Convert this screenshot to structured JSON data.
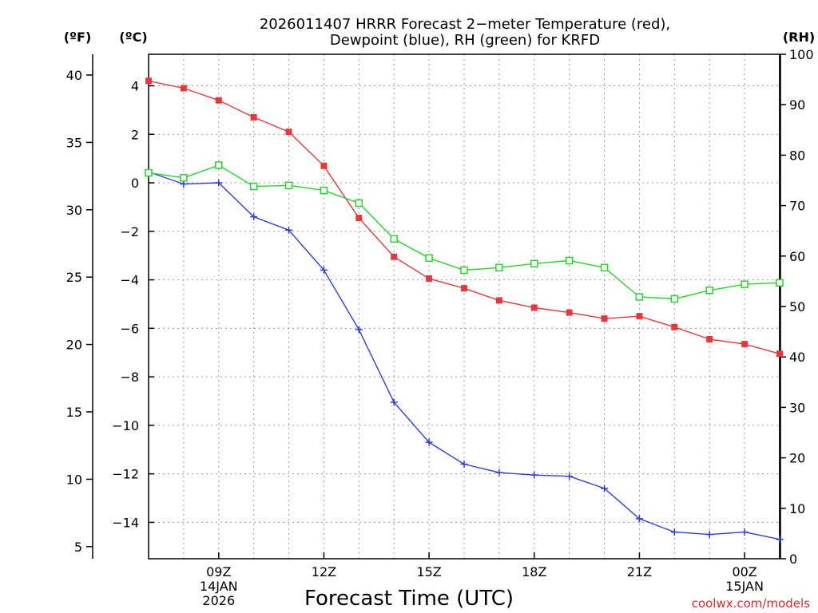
{
  "chart_data": {
    "type": "line",
    "title_line1": "2026011407 HRRR Forecast 2−meter Temperature (red),",
    "title_line2": "Dewpoint (blue), RH (green) for KRFD",
    "xlabel": "Forecast Time (UTC)",
    "credit": "coolwx.com/models",
    "units": {
      "fahrenheit": "(ºF)",
      "celsius": "(ºC)",
      "rh": "(RH)"
    },
    "x_hours": [
      7,
      8,
      9,
      10,
      11,
      12,
      13,
      14,
      15,
      16,
      17,
      18,
      19,
      20,
      21,
      22,
      23,
      24,
      25
    ],
    "x_range": [
      7,
      25
    ],
    "x_ticks": [
      {
        "hour": 9,
        "lines": [
          "09Z",
          "14JAN",
          "2026"
        ]
      },
      {
        "hour": 12,
        "lines": [
          "12Z"
        ]
      },
      {
        "hour": 15,
        "lines": [
          "15Z"
        ]
      },
      {
        "hour": 18,
        "lines": [
          "18Z"
        ]
      },
      {
        "hour": 21,
        "lines": [
          "21Z"
        ]
      },
      {
        "hour": 24,
        "lines": [
          "00Z",
          "15JAN"
        ]
      }
    ],
    "celsius_range": [
      -15.5,
      5.3
    ],
    "celsius_ticks": [
      4,
      2,
      0,
      -2,
      -4,
      -6,
      -8,
      -10,
      -12,
      -14
    ],
    "fahrenheit_ticks": [
      40,
      35,
      30,
      25,
      20,
      15,
      10,
      5
    ],
    "rh_range": [
      0,
      100
    ],
    "rh_ticks": [
      100,
      90,
      80,
      70,
      60,
      50,
      40,
      30,
      20,
      10,
      0
    ],
    "series": [
      {
        "name": "Temperature",
        "axis": "celsius",
        "color": "#e8363b",
        "marker": "filled-square",
        "values": [
          4.2,
          3.9,
          3.4,
          2.7,
          2.1,
          0.7,
          -1.45,
          -3.05,
          -3.95,
          -4.35,
          -4.85,
          -5.15,
          -5.35,
          -5.6,
          -5.5,
          -5.95,
          -6.45,
          -6.65,
          -7.05
        ]
      },
      {
        "name": "Dewpoint",
        "axis": "celsius",
        "color": "#2a3ee0",
        "marker": "plus",
        "values": [
          0.45,
          -0.05,
          0.0,
          -1.4,
          -1.95,
          -3.6,
          -6.05,
          -9.05,
          -10.7,
          -11.6,
          -11.95,
          -12.05,
          -12.1,
          -12.6,
          -13.85,
          -14.4,
          -14.5,
          -14.4,
          -14.7
        ]
      },
      {
        "name": "RH",
        "axis": "rh",
        "color": "#27d42a",
        "marker": "open-square",
        "values": [
          76.5,
          75.5,
          78.0,
          73.8,
          74.0,
          73.0,
          70.5,
          63.4,
          59.6,
          57.2,
          57.7,
          58.5,
          59.1,
          57.7,
          51.9,
          51.5,
          53.2,
          54.4,
          54.7
        ]
      }
    ]
  }
}
